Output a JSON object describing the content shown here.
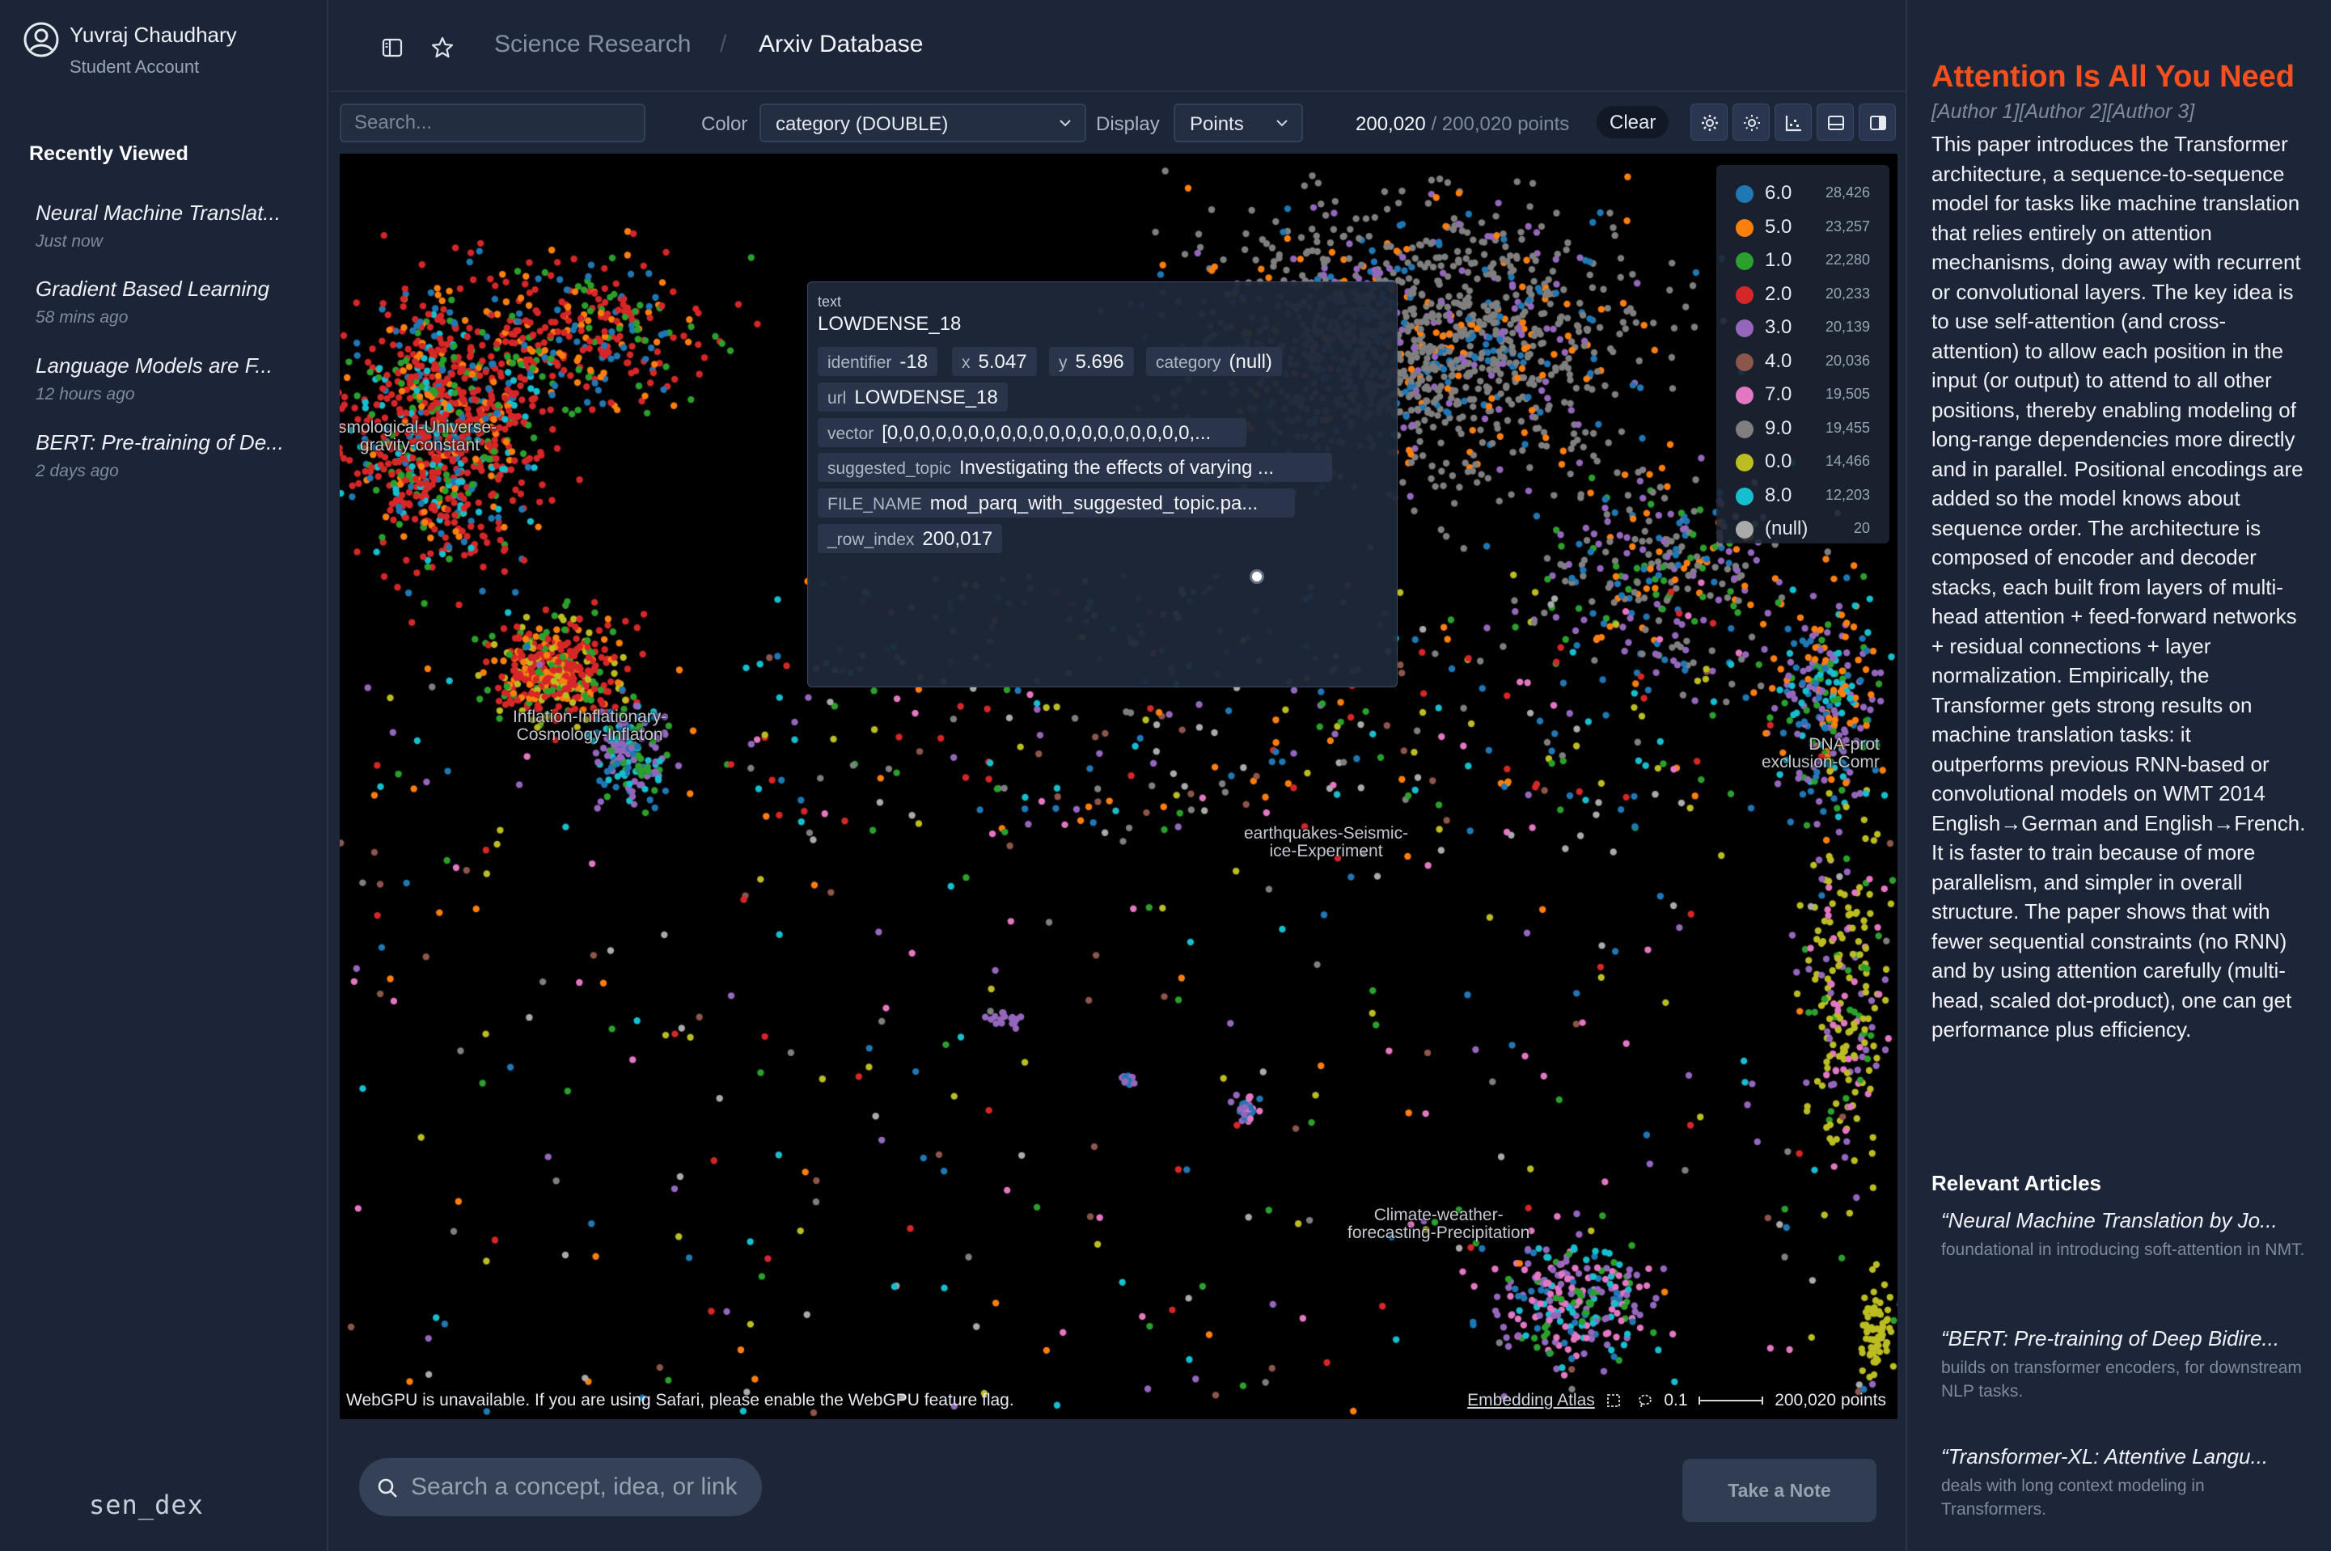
{
  "user": {
    "name": "Yuvraj Chaudhary",
    "role": "Student Account"
  },
  "sidebar": {
    "recent_title": "Recently Viewed",
    "items": [
      {
        "title": "Neural Machine Translat...",
        "time": "Just now"
      },
      {
        "title": "Gradient Based Learning",
        "time": "58 mins ago"
      },
      {
        "title": "Language Models are F...",
        "time": "12 hours ago"
      },
      {
        "title": "BERT: Pre-training of De...",
        "time": "2 days ago"
      }
    ],
    "brand": "sen_dex"
  },
  "breadcrumb": {
    "parent": "Science Research",
    "separator": "/",
    "current": "Arxiv Database"
  },
  "toolbar": {
    "search_placeholder": "Search...",
    "color_label": "Color",
    "color_value": "category (DOUBLE)",
    "display_label": "Display",
    "display_value": "Points",
    "count_selected": "200,020",
    "count_total": "/ 200,020 points",
    "clear_label": "Clear"
  },
  "legend": [
    {
      "label": "6.0",
      "count": "28,426",
      "color": "#1f77b4"
    },
    {
      "label": "5.0",
      "count": "23,257",
      "color": "#ff7f0e"
    },
    {
      "label": "1.0",
      "count": "22,280",
      "color": "#2ca02c"
    },
    {
      "label": "2.0",
      "count": "20,233",
      "color": "#d62728"
    },
    {
      "label": "3.0",
      "count": "20,139",
      "color": "#9467bd"
    },
    {
      "label": "4.0",
      "count": "20,036",
      "color": "#8c564b"
    },
    {
      "label": "7.0",
      "count": "19,505",
      "color": "#e377c2"
    },
    {
      "label": "9.0",
      "count": "19,455",
      "color": "#7f7f7f"
    },
    {
      "label": "0.0",
      "count": "14,466",
      "color": "#bcbd22"
    },
    {
      "label": "8.0",
      "count": "12,203",
      "color": "#17becf"
    },
    {
      "label": "(null)",
      "count": "20",
      "color": "#aaaaaa"
    }
  ],
  "clusters": [
    {
      "text": "smological-Universe-\n gravity-constant"
    },
    {
      "text": "Inflation-Inflationary-\nCosmology-Inflaton"
    },
    {
      "text": "earthquakes-Seismic-\nice-Experiment"
    },
    {
      "text": "DNA-prot\nexclusion-Comr"
    },
    {
      "text": "Climate-weather-\nforecasting-Precipitation"
    }
  ],
  "tooltip": {
    "field_label": "text",
    "title": "LOWDENSE_18",
    "identifier_key": "identifier",
    "identifier_val": "-18",
    "x_key": "x",
    "x_val": "5.047",
    "y_key": "y",
    "y_val": "5.696",
    "category_key": "category",
    "category_val": "(null)",
    "url_key": "url",
    "url_val": "LOWDENSE_18",
    "vector_key": "vector",
    "vector_val": "[0,0,0,0,0,0,0,0,0,0,0,0,0,0,0,0,0,0,0,...",
    "topic_key": "suggested_topic",
    "topic_val": "Investigating the effects of varying ...",
    "file_key": "FILE_NAME",
    "file_val": "mod_parq_with_suggested_topic.pa...",
    "row_key": "_row_index",
    "row_val": "200,017"
  },
  "map_footer": {
    "warning": "WebGPU is unavailable. If you are using Safari, please enable the WebGPU feature flag.",
    "link": "Embedding Atlas",
    "scale": "0.1",
    "points": "200,020 points"
  },
  "bottom": {
    "concept_placeholder": "Search a concept, idea, or link",
    "note_label": "Take a Note"
  },
  "paper": {
    "title": "Attention Is All You Need",
    "authors": "[Author 1][Author 2][Author 3]",
    "abstract": "This paper introduces the Transformer architecture, a sequence-to-sequence model for tasks like machine translation that relies entirely on attention mechanisms, doing away with recurrent or convolutional layers. The key idea is to use self-attention (and cross-attention) to allow each position in the input (or output) to attend to all other positions, thereby enabling modeling of long-range dependencies more directly and in parallel. Positional encodings are added so the model knows about sequence order. The architecture is composed of encoder and decoder stacks, each built from layers of multi-head attention + feed-forward networks + residual connections + layer normalization. Empirically, the Transformer gets strong results on machine translation tasks: it outperforms previous RNN-based or convolutional models on WMT 2014 English→German and English→French. It is faster to train because of more parallelism, and simpler in overall structure. The paper shows that with fewer sequential constraints (no RNN) and by using attention carefully (multi-head, scaled dot-product), one can get performance plus efficiency.",
    "relevant_title": "Relevant Articles",
    "relevant": [
      {
        "title": "“Neural Machine Translation by Jo...",
        "desc": "foundational in introducing soft-attention in NMT."
      },
      {
        "title": "“BERT: Pre-training of Deep Bidire...",
        "desc": "builds on transformer encoders, for downstream NLP tasks."
      },
      {
        "title": "“Transformer-XL: Attentive Langu...",
        "desc": "deals with long context modeling in Transformers."
      }
    ]
  }
}
